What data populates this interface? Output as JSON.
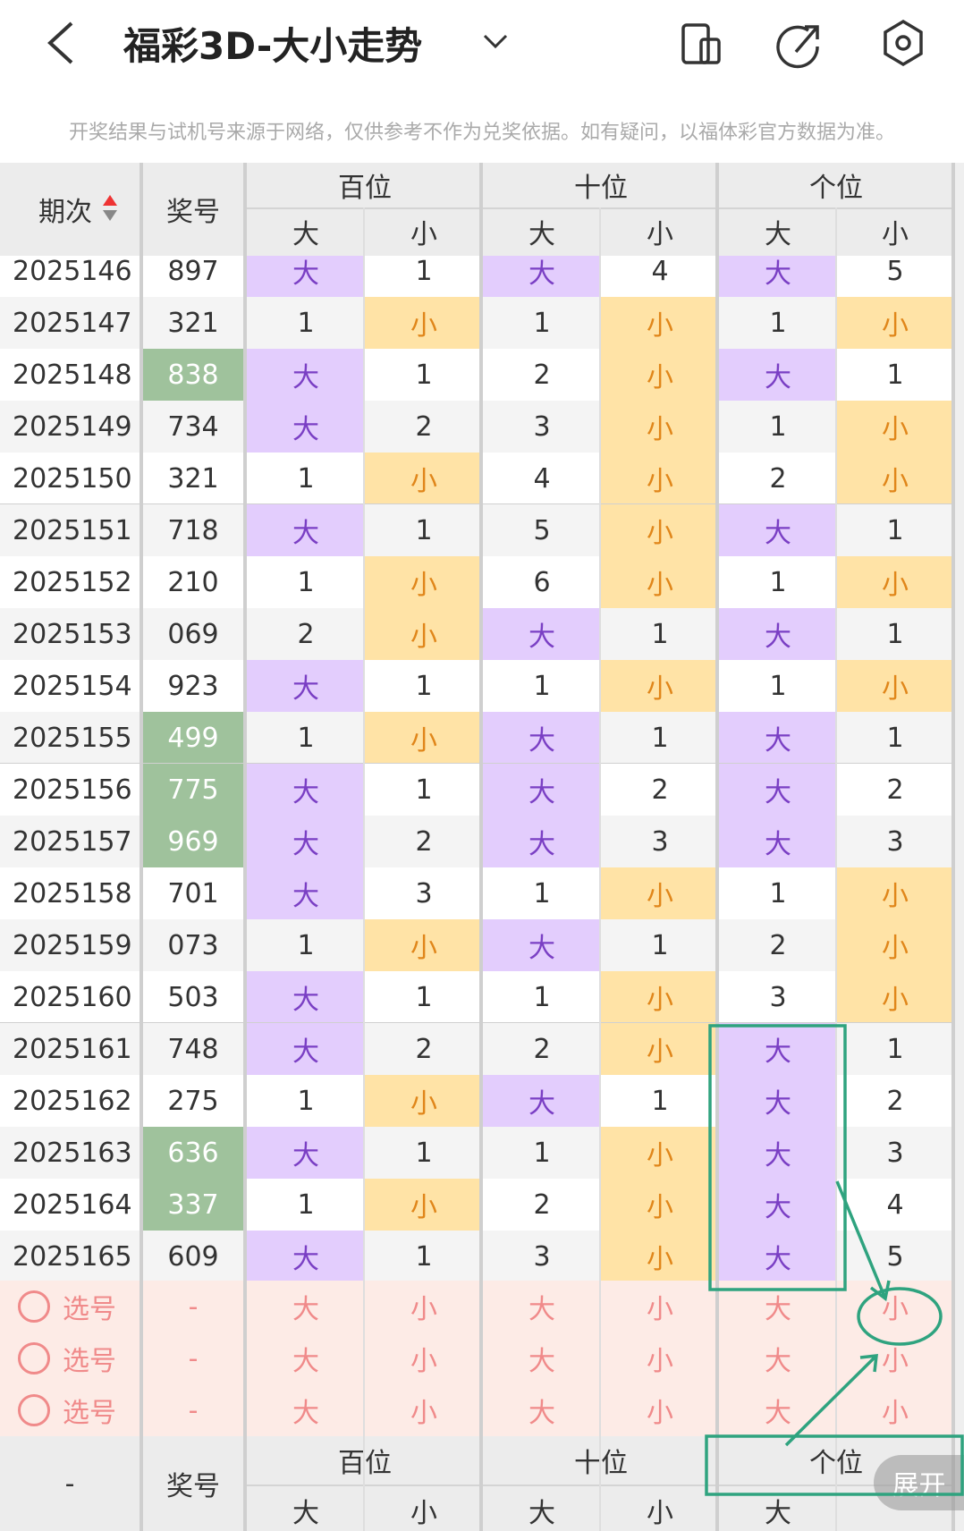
{
  "header": {
    "title": "福彩3D-大小走势"
  },
  "notice": "开奖结果与试机号来源于网络，仅供参考不作为兑奖依据。如有疑问，以福体彩官方数据为准。",
  "colors": {
    "big_bg": "#e3cdfd",
    "big_text": "#7a3fc4",
    "small_bg": "#ffe3a6",
    "small_text": "#e0861a",
    "highlight_bg": "#9fc29c",
    "select_bg": "#fdebe6",
    "select_text": "#f08a8a"
  },
  "table": {
    "period_header": "期次",
    "number_header": "奖号",
    "groups": [
      "百位",
      "十位",
      "个位"
    ],
    "subheaders": [
      "大",
      "小",
      "大",
      "小",
      "大",
      "小"
    ],
    "rows": [
      {
        "period": "2025146",
        "number": "897",
        "highlight": false,
        "cells": [
          "大",
          "1",
          "大",
          "4",
          "大",
          "5"
        ]
      },
      {
        "period": "2025147",
        "number": "321",
        "highlight": false,
        "cells": [
          "1",
          "小",
          "1",
          "小",
          "1",
          "小"
        ]
      },
      {
        "period": "2025148",
        "number": "838",
        "highlight": true,
        "cells": [
          "大",
          "1",
          "2",
          "小",
          "大",
          "1"
        ]
      },
      {
        "period": "2025149",
        "number": "734",
        "highlight": false,
        "cells": [
          "大",
          "2",
          "3",
          "小",
          "1",
          "小"
        ]
      },
      {
        "period": "2025150",
        "number": "321",
        "highlight": false,
        "cells": [
          "1",
          "小",
          "4",
          "小",
          "2",
          "小"
        ]
      },
      {
        "period": "2025151",
        "number": "718",
        "highlight": false,
        "cells": [
          "大",
          "1",
          "5",
          "小",
          "大",
          "1"
        ]
      },
      {
        "period": "2025152",
        "number": "210",
        "highlight": false,
        "cells": [
          "1",
          "小",
          "6",
          "小",
          "1",
          "小"
        ]
      },
      {
        "period": "2025153",
        "number": "069",
        "highlight": false,
        "cells": [
          "2",
          "小",
          "大",
          "1",
          "大",
          "1"
        ]
      },
      {
        "period": "2025154",
        "number": "923",
        "highlight": false,
        "cells": [
          "大",
          "1",
          "1",
          "小",
          "1",
          "小"
        ]
      },
      {
        "period": "2025155",
        "number": "499",
        "highlight": true,
        "cells": [
          "1",
          "小",
          "大",
          "1",
          "大",
          "1"
        ]
      },
      {
        "period": "2025156",
        "number": "775",
        "highlight": true,
        "cells": [
          "大",
          "1",
          "大",
          "2",
          "大",
          "2"
        ]
      },
      {
        "period": "2025157",
        "number": "969",
        "highlight": true,
        "cells": [
          "大",
          "2",
          "大",
          "3",
          "大",
          "3"
        ]
      },
      {
        "period": "2025158",
        "number": "701",
        "highlight": false,
        "cells": [
          "大",
          "3",
          "1",
          "小",
          "1",
          "小"
        ]
      },
      {
        "period": "2025159",
        "number": "073",
        "highlight": false,
        "cells": [
          "1",
          "小",
          "大",
          "1",
          "2",
          "小"
        ]
      },
      {
        "period": "2025160",
        "number": "503",
        "highlight": false,
        "cells": [
          "大",
          "1",
          "1",
          "小",
          "3",
          "小"
        ]
      },
      {
        "period": "2025161",
        "number": "748",
        "highlight": false,
        "cells": [
          "大",
          "2",
          "2",
          "小",
          "大",
          "1"
        ]
      },
      {
        "period": "2025162",
        "number": "275",
        "highlight": false,
        "cells": [
          "1",
          "小",
          "大",
          "1",
          "大",
          "2"
        ]
      },
      {
        "period": "2025163",
        "number": "636",
        "highlight": true,
        "cells": [
          "大",
          "1",
          "1",
          "小",
          "大",
          "3"
        ]
      },
      {
        "period": "2025164",
        "number": "337",
        "highlight": true,
        "cells": [
          "1",
          "小",
          "2",
          "小",
          "大",
          "4"
        ]
      },
      {
        "period": "2025165",
        "number": "609",
        "highlight": false,
        "cells": [
          "大",
          "1",
          "3",
          "小",
          "大",
          "5"
        ]
      }
    ],
    "select_rows": [
      {
        "label": "选号",
        "number": "-",
        "cells": [
          "大",
          "小",
          "大",
          "小",
          "大",
          "小"
        ]
      },
      {
        "label": "选号",
        "number": "-",
        "cells": [
          "大",
          "小",
          "大",
          "小",
          "大",
          "小"
        ]
      },
      {
        "label": "选号",
        "number": "-",
        "cells": [
          "大",
          "小",
          "大",
          "小",
          "大",
          "小"
        ]
      }
    ],
    "footer": {
      "period": "-",
      "number": "奖号",
      "groups": [
        "百位",
        "十位",
        "个位"
      ],
      "subheaders": [
        "大",
        "小",
        "大",
        "小",
        "大"
      ],
      "button": "展开"
    }
  }
}
